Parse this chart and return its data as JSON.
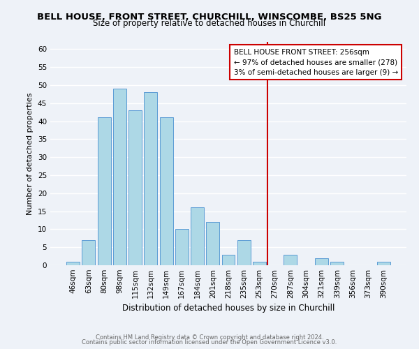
{
  "title": "BELL HOUSE, FRONT STREET, CHURCHILL, WINSCOMBE, BS25 5NG",
  "subtitle": "Size of property relative to detached houses in Churchill",
  "xlabel": "Distribution of detached houses by size in Churchill",
  "ylabel": "Number of detached properties",
  "bar_labels": [
    "46sqm",
    "63sqm",
    "80sqm",
    "98sqm",
    "115sqm",
    "132sqm",
    "149sqm",
    "167sqm",
    "184sqm",
    "201sqm",
    "218sqm",
    "235sqm",
    "253sqm",
    "270sqm",
    "287sqm",
    "304sqm",
    "321sqm",
    "339sqm",
    "356sqm",
    "373sqm",
    "390sqm"
  ],
  "bar_values": [
    1,
    7,
    41,
    49,
    43,
    48,
    41,
    10,
    16,
    12,
    3,
    7,
    1,
    0,
    3,
    0,
    2,
    1,
    0,
    0,
    1
  ],
  "bar_color": "#add8e6",
  "bar_edge_color": "#5b9bd5",
  "ylim": [
    0,
    62
  ],
  "yticks": [
    0,
    5,
    10,
    15,
    20,
    25,
    30,
    35,
    40,
    45,
    50,
    55,
    60
  ],
  "vline_idx": 12,
  "vline_color": "#cc0000",
  "annotation_text": "BELL HOUSE FRONT STREET: 256sqm\n← 97% of detached houses are smaller (278)\n3% of semi-detached houses are larger (9) →",
  "footer_line1": "Contains HM Land Registry data © Crown copyright and database right 2024.",
  "footer_line2": "Contains public sector information licensed under the Open Government Licence v3.0.",
  "bg_color": "#eef2f8",
  "plot_bg_color": "#eef2f8",
  "grid_color": "#ffffff",
  "title_fontsize": 9.5,
  "subtitle_fontsize": 8.5,
  "ylabel_fontsize": 8,
  "xlabel_fontsize": 8.5,
  "tick_fontsize": 7.5,
  "annot_fontsize": 7.5,
  "footer_fontsize": 6.0
}
